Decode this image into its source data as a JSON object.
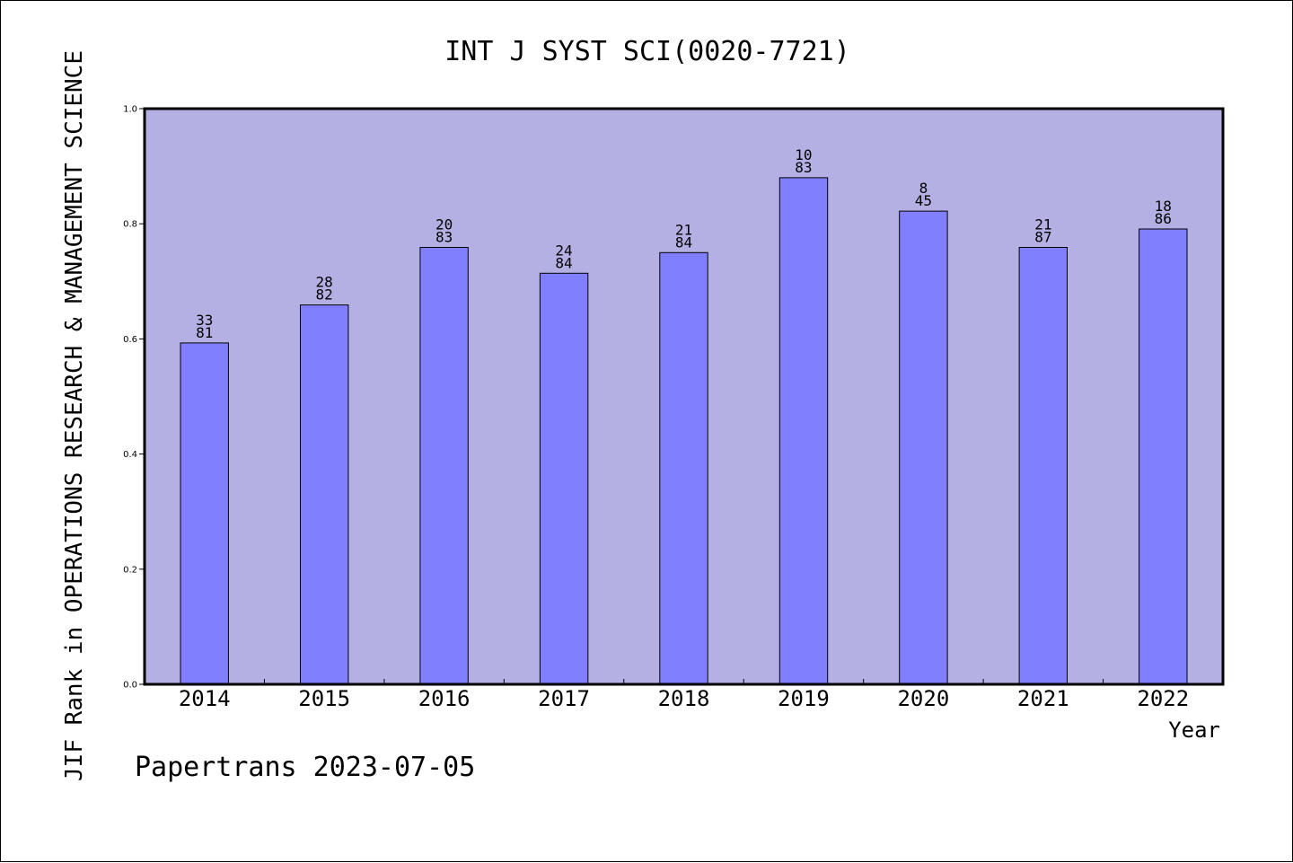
{
  "chart_data": {
    "type": "bar",
    "title": "INT J SYST SCI(0020-7721)",
    "xlabel": "Year",
    "ylabel": "JIF Rank in OPERATIONS RESEARCH & MANAGEMENT SCIENCE",
    "categories": [
      "2014",
      "2015",
      "2016",
      "2017",
      "2018",
      "2019",
      "2020",
      "2021",
      "2022"
    ],
    "values": [
      0.593,
      0.659,
      0.759,
      0.714,
      0.75,
      0.88,
      0.822,
      0.759,
      0.791
    ],
    "ranks": [
      "33",
      "28",
      "20",
      "24",
      "21",
      "10",
      "8",
      "21",
      "18"
    ],
    "totals": [
      "81",
      "82",
      "83",
      "84",
      "84",
      "83",
      "45",
      "87",
      "86"
    ],
    "ylim": [
      0,
      1.0
    ],
    "yticks": [
      "0.0",
      "0.2",
      "0.4",
      "0.6",
      "0.8",
      "1.0"
    ],
    "grid": false,
    "legend": "none",
    "colors": {
      "plot_background": "#b5b0e3",
      "bar_fill": "#8080ff",
      "bar_stroke": "#000000"
    }
  },
  "footer": "Papertrans 2023-07-05"
}
